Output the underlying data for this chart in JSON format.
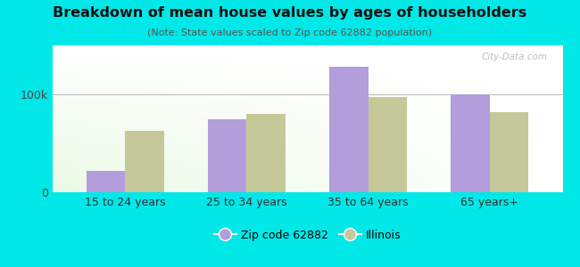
{
  "title": "Breakdown of mean house values by ages of householders",
  "subtitle": "(Note: State values scaled to Zip code 62882 population)",
  "categories": [
    "15 to 24 years",
    "25 to 34 years",
    "35 to 64 years",
    "65 years+"
  ],
  "zip_values": [
    22000,
    75000,
    128000,
    100000
  ],
  "il_values": [
    63000,
    80000,
    97000,
    82000
  ],
  "zip_color": "#b39ddb",
  "il_color": "#c5c99a",
  "bg_color": "#00e8e8",
  "ytick_value": 100000,
  "ytick_label": "100k",
  "ymax": 150000,
  "legend_zip": "Zip code 62882",
  "legend_il": "Illinois",
  "watermark": "City-Data.com",
  "bar_width": 0.32
}
